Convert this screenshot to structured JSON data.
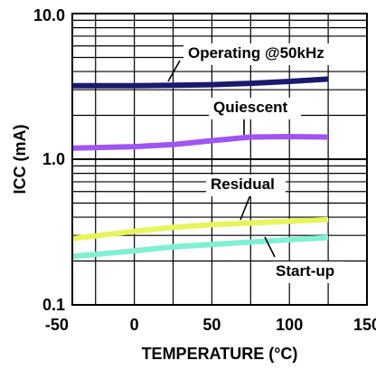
{
  "chart_data": {
    "type": "line",
    "xlabel": "TEMPERATURE (°C)",
    "ylabel": "ICC (mA)",
    "xlim": [
      -40,
      150
    ],
    "ylim": [
      0.1,
      10.0
    ],
    "y_scale": "log",
    "grid": true,
    "x_ticks": [
      "-50",
      "0",
      "50",
      "100",
      "150"
    ],
    "y_ticks": [
      "0.1",
      "1.0",
      "10.0"
    ],
    "series": [
      {
        "name": "Operating @50kHz",
        "color": "#1a1a6e",
        "x": [
          -40,
          0,
          25,
          50,
          75,
          100,
          125
        ],
        "y": [
          3.2,
          3.2,
          3.22,
          3.25,
          3.32,
          3.42,
          3.55
        ]
      },
      {
        "name": "Quiescent",
        "color": "#a055f0",
        "x": [
          -40,
          0,
          25,
          50,
          75,
          100,
          125
        ],
        "y": [
          1.19,
          1.22,
          1.26,
          1.34,
          1.42,
          1.43,
          1.42
        ]
      },
      {
        "name": "Residual",
        "color": "#e6f55a",
        "x": [
          -40,
          0,
          25,
          50,
          75,
          100,
          125
        ],
        "y": [
          0.285,
          0.32,
          0.34,
          0.355,
          0.365,
          0.375,
          0.385
        ]
      },
      {
        "name": "Start-up",
        "color": "#7ff0d2",
        "x": [
          -40,
          0,
          25,
          50,
          75,
          100,
          125
        ],
        "y": [
          0.215,
          0.235,
          0.25,
          0.26,
          0.27,
          0.28,
          0.29
        ]
      }
    ]
  }
}
